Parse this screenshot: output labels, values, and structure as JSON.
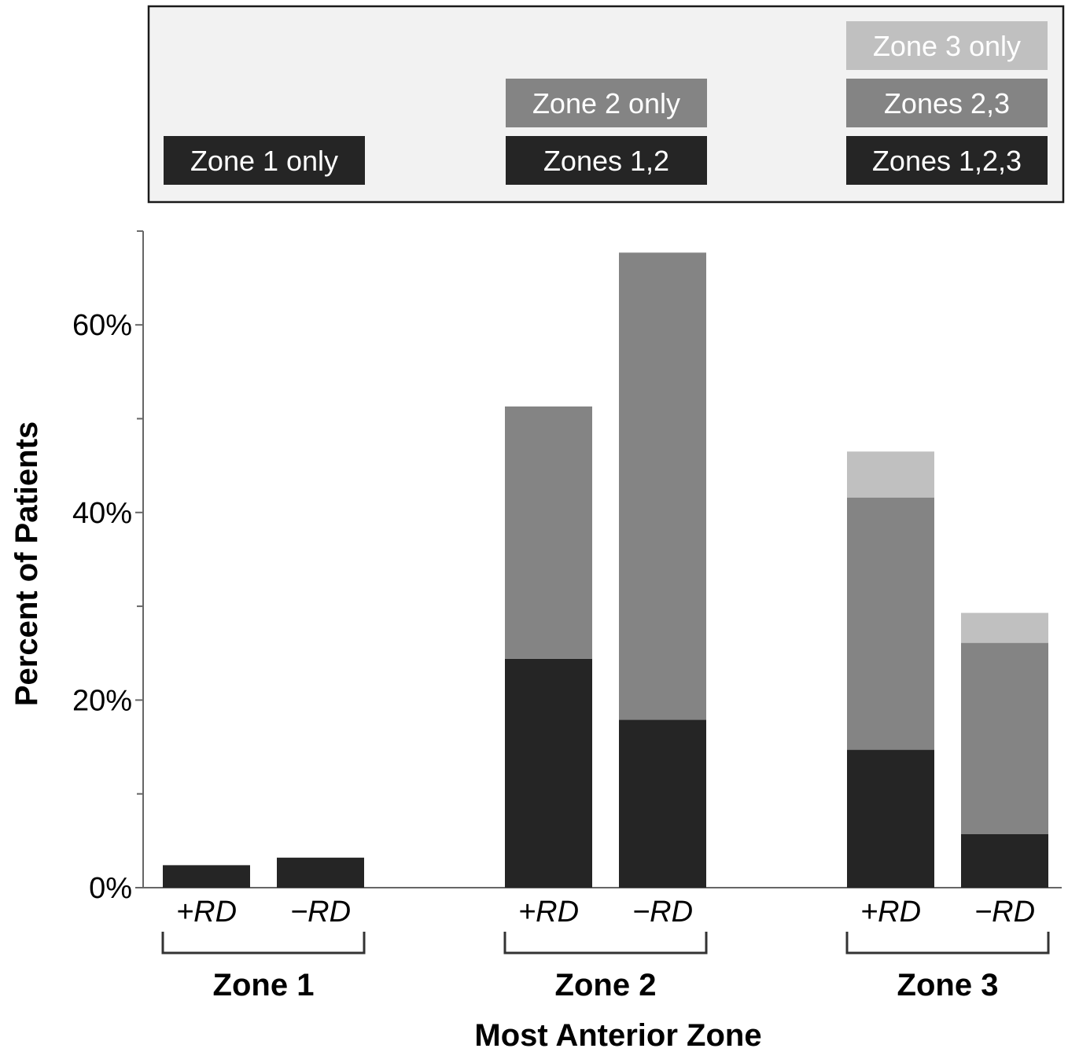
{
  "chart_data": {
    "type": "bar",
    "stacked": true,
    "xlabel": "Most Anterior Zone",
    "ylabel": "Percent of Patients",
    "ylim": [
      0,
      70
    ],
    "yticks": [
      0,
      20,
      40,
      60
    ],
    "ytick_labels": [
      "0%",
      "20%",
      "40%",
      "60%"
    ],
    "minor_yticks": [
      10,
      30,
      50,
      70
    ],
    "grid": false,
    "legend_position": "top",
    "groups": [
      {
        "name": "Zone 1",
        "bars": [
          {
            "label": "+RD",
            "segments": [
              {
                "series": "Zone 1 only",
                "value": 2.4
              }
            ]
          },
          {
            "label": "−RD",
            "segments": [
              {
                "series": "Zone 1 only",
                "value": 3.2
              }
            ]
          }
        ]
      },
      {
        "name": "Zone 2",
        "bars": [
          {
            "label": "+RD",
            "segments": [
              {
                "series": "Zones 1,2",
                "value": 24.4
              },
              {
                "series": "Zone 2 only",
                "value": 26.9
              }
            ]
          },
          {
            "label": "−RD",
            "segments": [
              {
                "series": "Zones 1,2",
                "value": 17.9
              },
              {
                "series": "Zone 2 only",
                "value": 49.8
              }
            ]
          }
        ]
      },
      {
        "name": "Zone 3",
        "bars": [
          {
            "label": "+RD",
            "segments": [
              {
                "series": "Zones 1,2,3",
                "value": 14.7
              },
              {
                "series": "Zones 2,3",
                "value": 26.9
              },
              {
                "series": "Zone 3 only",
                "value": 4.9
              }
            ]
          },
          {
            "label": "−RD",
            "segments": [
              {
                "series": "Zones 1,2,3",
                "value": 5.7
              },
              {
                "series": "Zones 2,3",
                "value": 20.4
              },
              {
                "series": "Zone 3 only",
                "value": 3.2
              }
            ]
          }
        ]
      }
    ],
    "legend": [
      {
        "label": "Zone 1 only",
        "color": "#252525"
      },
      {
        "label": "Zone 2 only",
        "color": "#848484"
      },
      {
        "label": "Zones 1,2",
        "color": "#252525"
      },
      {
        "label": "Zone 3 only",
        "color": "#c0c0c0"
      },
      {
        "label": "Zones 2,3",
        "color": "#848484"
      },
      {
        "label": "Zones 1,2,3",
        "color": "#252525"
      }
    ],
    "colors": {
      "Zone 1 only": "#252525",
      "Zones 1,2": "#252525",
      "Zones 1,2,3": "#252525",
      "Zone 2 only": "#848484",
      "Zones 2,3": "#848484",
      "Zone 3 only": "#c0c0c0"
    }
  }
}
